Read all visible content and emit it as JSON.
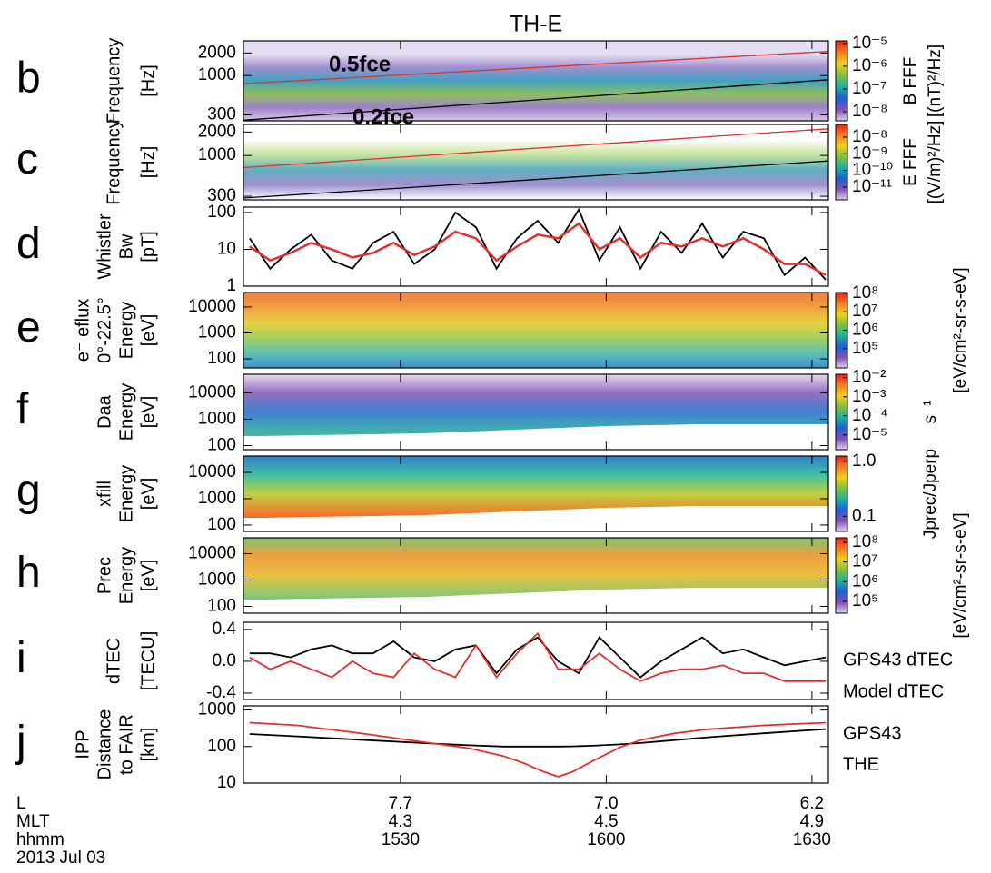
{
  "title": "TH-E",
  "x_axis": {
    "xlim": [
      907.1,
      992.4
    ],
    "xticks": [
      {
        "value": 930,
        "label": "1530"
      },
      {
        "value": 960,
        "label": "1600"
      },
      {
        "value": 990,
        "label": "1630"
      }
    ],
    "rows": [
      {
        "name": "L",
        "labels": [
          "7.7",
          "7.0",
          "6.2"
        ]
      },
      {
        "name": "MLT",
        "labels": [
          "4.3",
          "4.5",
          "4.9"
        ]
      },
      {
        "name": "hhmm"
      }
    ],
    "date": "2013 Jul 03"
  },
  "colorbar_colors": [
    "#e82020",
    "#f08020",
    "#f0d020",
    "#80c040",
    "#20b0a0",
    "#2060d0",
    "#8050b0",
    "#e0d0ee"
  ],
  "chart_data": [
    {
      "type": "spectrogram",
      "panel": "b",
      "ylabel": [
        "Frequency",
        "[Hz]"
      ],
      "log": true,
      "ylim": [
        250,
        2900
      ],
      "yticks": [
        300,
        1000,
        2000
      ],
      "colors": [
        "#e4dcf0",
        "#e4dcf0",
        "#a090d0",
        "#40a0c0",
        "#90c060",
        "#a080c8",
        "#d8c8e8"
      ],
      "lines": [
        {
          "name": "0.5fce",
          "color": "#e03030",
          "x": [
            907.1,
            992.4
          ],
          "values": [
            780,
            2100
          ]
        },
        {
          "name": "0.2fce",
          "color": "#000000",
          "x": [
            907.1,
            992.4
          ],
          "values": [
            255,
            880
          ]
        }
      ],
      "colorbar": {
        "label": [
          "B FFF",
          "[(nT)²/Hz]"
        ],
        "clim": [
          4e-09,
          1.3e-05
        ],
        "ticks": [
          {
            "value": 1e-05,
            "label": "10⁻⁵"
          },
          {
            "value": 1e-06,
            "label": "10⁻⁶"
          },
          {
            "value": 1e-07,
            "label": "10⁻⁷"
          },
          {
            "value": 1e-08,
            "label": "10⁻⁸"
          }
        ]
      }
    },
    {
      "type": "spectrogram",
      "panel": "c",
      "ylabel": [
        "Frequency",
        "[Hz]"
      ],
      "log": true,
      "ylim": [
        270,
        2500
      ],
      "yticks": [
        300,
        1000,
        2000
      ],
      "colors": [
        "#ffffff",
        "#ffffff",
        "#c8e4a0",
        "#60b0c0",
        "#a090d0",
        "#ffffff"
      ],
      "lines": [
        {
          "color": "#e03030",
          "x": [
            907.1,
            992.4
          ],
          "values": [
            700,
            2200
          ]
        },
        {
          "color": "#000000",
          "x": [
            907.1,
            992.4
          ],
          "values": [
            285,
            850
          ]
        }
      ],
      "colorbar": {
        "label": [
          "E FFF",
          "[(V/m)²/Hz]"
        ],
        "clim": [
          1.7e-12,
          5.8e-08
        ],
        "ticks": [
          {
            "value": 1e-08,
            "label": "10⁻⁸"
          },
          {
            "value": 1e-09,
            "label": "10⁻⁹"
          },
          {
            "value": 1e-10,
            "label": "10⁻¹⁰"
          },
          {
            "value": 1e-11,
            "label": "10⁻¹¹"
          }
        ]
      }
    },
    {
      "type": "line",
      "panel": "d",
      "ylabel": [
        "Whistler",
        "Bw",
        "[pT]"
      ],
      "log": true,
      "ylim": [
        1,
        140
      ],
      "yticks": [
        1,
        10,
        100
      ],
      "x": [
        908,
        911,
        914,
        917,
        920,
        923,
        926,
        929,
        932,
        935,
        938,
        941,
        944,
        947,
        950,
        953,
        956,
        959,
        962,
        965,
        968,
        971,
        974,
        977,
        980,
        983,
        986,
        989,
        992
      ],
      "series": [
        {
          "color": "#000000",
          "values": [
            20,
            3,
            10,
            25,
            5,
            3,
            15,
            30,
            4,
            10,
            100,
            40,
            3,
            20,
            60,
            15,
            120,
            5,
            40,
            3,
            30,
            8,
            50,
            6,
            30,
            20,
            2,
            6,
            1.5
          ]
        },
        {
          "color": "#e03030",
          "values": [
            12,
            5,
            8,
            15,
            10,
            6,
            8,
            15,
            7,
            12,
            30,
            20,
            5,
            12,
            25,
            20,
            50,
            10,
            20,
            6,
            15,
            12,
            20,
            12,
            20,
            10,
            4,
            4,
            2
          ]
        }
      ]
    },
    {
      "type": "spectrogram",
      "panel": "e",
      "ylabel": [
        "e⁻ eflux",
        "0°-22.5°",
        "Energy",
        "[eV]"
      ],
      "log": true,
      "ylim": [
        45,
        36000
      ],
      "yticks": [
        100,
        1000,
        10000
      ],
      "colors": [
        "#f08040",
        "#f0a040",
        "#e8d040",
        "#a8d060",
        "#60c0b0",
        "#4090d0"
      ],
      "colorbar": {
        "label": [
          "[eV/cm²-sr-s-eV]"
        ],
        "clim": [
          9000,
          110000000.0
        ],
        "ticks": [
          {
            "value": 100000000.0,
            "label": "10⁸"
          },
          {
            "value": 10000000.0,
            "label": "10⁷"
          },
          {
            "value": 1000000.0,
            "label": "10⁶"
          },
          {
            "value": 100000.0,
            "label": "10⁵"
          }
        ]
      }
    },
    {
      "type": "spectrogram",
      "panel": "f",
      "ylabel": [
        "Daa",
        "Energy",
        "[eV]"
      ],
      "log": true,
      "ylim": [
        70,
        50000
      ],
      "yticks": [
        100,
        1000,
        10000
      ],
      "colors": [
        "#e8d8f0",
        "#9070c0",
        "#4080d0",
        "#40b0b0",
        "#70c060"
      ],
      "colorbar": {
        "label": [
          "s⁻¹"
        ],
        "clim": [
          1.7e-06,
          0.015
        ],
        "ticks": [
          {
            "value": 0.01,
            "label": "10⁻²"
          },
          {
            "value": 0.001,
            "label": "10⁻³"
          },
          {
            "value": 0.0001,
            "label": "10⁻⁴"
          },
          {
            "value": 1e-05,
            "label": "10⁻⁵"
          }
        ]
      }
    },
    {
      "type": "spectrogram",
      "panel": "g",
      "ylabel": [
        "xfill",
        "Energy",
        "[eV]"
      ],
      "log": true,
      "ylim": [
        57,
        42000
      ],
      "yticks": [
        100,
        1000,
        10000
      ],
      "colors": [
        "#3080d0",
        "#40c0a0",
        "#c0d040",
        "#f08030",
        "#e83020"
      ],
      "colorbar": {
        "label": [
          "Jprec/Jperp"
        ],
        "clim": [
          0.053,
          1.25
        ],
        "ticks": [
          {
            "value": 1,
            "label": "1.0"
          },
          0.1
        ]
      }
    },
    {
      "type": "spectrogram",
      "panel": "h",
      "ylabel": [
        "Prec",
        "Energy",
        "[eV]"
      ],
      "log": true,
      "ylim": [
        55,
        40000
      ],
      "yticks": [
        100,
        1000,
        10000
      ],
      "colors": [
        "#80c070",
        "#f0a040",
        "#e8c040",
        "#90c870",
        "#40b0b0"
      ],
      "colorbar": {
        "label": [
          "[eV/cm²-sr-s-eV]"
        ],
        "clim": [
          25000,
          170000000.0
        ],
        "ticks": [
          {
            "value": 100000000.0,
            "label": "10⁸"
          },
          {
            "value": 10000000.0,
            "label": "10⁷"
          },
          {
            "value": 1000000.0,
            "label": "10⁶"
          },
          {
            "value": 100000.0,
            "label": "10⁵"
          }
        ]
      }
    },
    {
      "type": "line",
      "panel": "i",
      "ylabel": [
        "dTEC",
        "[TECU]"
      ],
      "log": false,
      "ylim": [
        -0.48,
        0.49
      ],
      "yticks": [
        0.4,
        {
          "value": 0,
          "label": "0.0"
        },
        -0.4
      ],
      "x": [
        908,
        911,
        914,
        917,
        920,
        923,
        926,
        929,
        932,
        935,
        938,
        941,
        944,
        947,
        950,
        953,
        956,
        959,
        962,
        965,
        968,
        971,
        974,
        977,
        980,
        983,
        986,
        989,
        992
      ],
      "series": [
        {
          "name": "GPS43 dTEC",
          "color": "#000000",
          "values": [
            0.1,
            0.1,
            0.05,
            0.15,
            0.2,
            0.1,
            0.1,
            0.25,
            0.05,
            0,
            0.15,
            0.2,
            -0.15,
            0.15,
            0.3,
            0,
            -0.15,
            0.3,
            0.05,
            -0.2,
            0,
            0.15,
            0.3,
            0.1,
            0.15,
            0.05,
            -0.05,
            0,
            0.05
          ]
        },
        {
          "name": "Model dTEC",
          "color": "#e03030",
          "values": [
            0.05,
            -0.1,
            0,
            -0.1,
            -0.2,
            0,
            -0.15,
            -0.2,
            0.1,
            -0.1,
            -0.2,
            0.2,
            -0.2,
            0.1,
            0.35,
            -0.1,
            -0.1,
            0.1,
            -0.1,
            -0.25,
            -0.15,
            -0.1,
            -0.1,
            -0.05,
            -0.15,
            -0.15,
            -0.25,
            -0.25,
            -0.25
          ]
        }
      ]
    },
    {
      "type": "line",
      "panel": "j",
      "ylabel": [
        "IPP",
        "Distance",
        "to FAIR",
        "[km]"
      ],
      "log": true,
      "ylim": [
        10,
        1300
      ],
      "yticks": [
        10,
        100,
        1000
      ],
      "x": [
        908,
        915,
        925,
        935,
        940,
        945,
        948,
        951,
        953,
        955,
        958,
        962,
        965,
        970,
        975,
        983,
        992
      ],
      "series": [
        {
          "name": "GPS43",
          "color": "#000000",
          "values": [
            220,
            190,
            150,
            120,
            108,
            100,
            100,
            100,
            100,
            101,
            105,
            115,
            125,
            150,
            180,
            230,
            300
          ]
        },
        {
          "name": "THE",
          "color": "#e03030",
          "values": [
            450,
            380,
            220,
            120,
            90,
            55,
            35,
            20,
            15,
            20,
            40,
            95,
            150,
            230,
            300,
            380,
            450
          ]
        }
      ]
    }
  ]
}
